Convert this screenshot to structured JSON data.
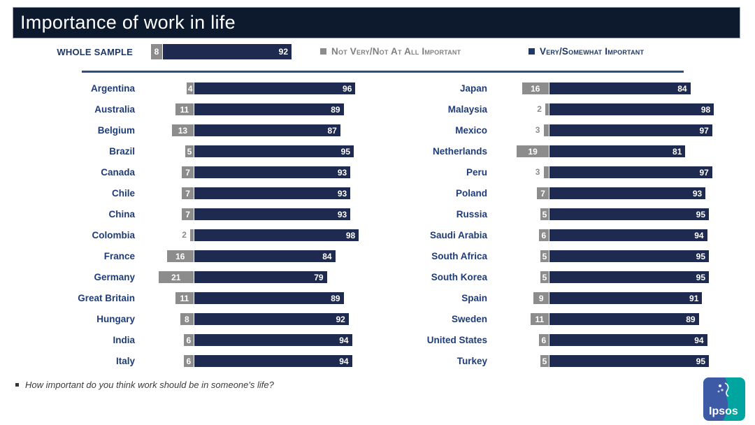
{
  "title": "Importance of work in life",
  "whole_sample": {
    "label": "WHOLE SAMPLE",
    "not_important": 8,
    "important": 92
  },
  "legend": {
    "not_important": "Not Very/Not At All Important",
    "important": "Very/Somewhat Important"
  },
  "footnote": "How important do you think work should be in someone's life?",
  "logo_text": "Ipsos",
  "colors": {
    "header_bg": "#0d1a2e",
    "navy_bar": "#1f2a50",
    "gray_bar": "#8c8c8c",
    "country_label": "#1f3c78",
    "legend_gray": "#7f7f7f",
    "legend_navy": "#1f3864",
    "divider": "#2d4e81",
    "ipsos_blue": "#3c5aa5",
    "ipsos_teal": "#00a5a0"
  },
  "chart_data": {
    "type": "bar",
    "orientation": "horizontal",
    "title": "Importance of work in life",
    "xlim": [
      0,
      100
    ],
    "grid": false,
    "legend_position": "top",
    "legend": [
      "Not Very/Not At All Important",
      "Very/Somewhat Important"
    ],
    "whole_sample": {
      "category": "Whole sample",
      "not_important": 8,
      "important": 92
    },
    "series_names": [
      "not_important",
      "important"
    ],
    "countries": [
      {
        "name": "Argentina",
        "not_important": 4,
        "important": 96,
        "column": "left"
      },
      {
        "name": "Australia",
        "not_important": 11,
        "important": 89,
        "column": "left"
      },
      {
        "name": "Belgium",
        "not_important": 13,
        "important": 87,
        "column": "left"
      },
      {
        "name": "Brazil",
        "not_important": 5,
        "important": 95,
        "column": "left"
      },
      {
        "name": "Canada",
        "not_important": 7,
        "important": 93,
        "column": "left"
      },
      {
        "name": "Chile",
        "not_important": 7,
        "important": 93,
        "column": "left"
      },
      {
        "name": "China",
        "not_important": 7,
        "important": 93,
        "column": "left"
      },
      {
        "name": "Colombia",
        "not_important": 2,
        "important": 98,
        "column": "left"
      },
      {
        "name": "France",
        "not_important": 16,
        "important": 84,
        "column": "left"
      },
      {
        "name": "Germany",
        "not_important": 21,
        "important": 79,
        "column": "left"
      },
      {
        "name": "Great Britain",
        "not_important": 11,
        "important": 89,
        "column": "left"
      },
      {
        "name": "Hungary",
        "not_important": 8,
        "important": 92,
        "column": "left"
      },
      {
        "name": "India",
        "not_important": 6,
        "important": 94,
        "column": "left"
      },
      {
        "name": "Italy",
        "not_important": 6,
        "important": 94,
        "column": "left"
      },
      {
        "name": "Japan",
        "not_important": 16,
        "important": 84,
        "column": "right"
      },
      {
        "name": "Malaysia",
        "not_important": 2,
        "important": 98,
        "column": "right"
      },
      {
        "name": "Mexico",
        "not_important": 3,
        "important": 97,
        "column": "right"
      },
      {
        "name": "Netherlands",
        "not_important": 19,
        "important": 81,
        "column": "right"
      },
      {
        "name": "Peru",
        "not_important": 3,
        "important": 97,
        "column": "right"
      },
      {
        "name": "Poland",
        "not_important": 7,
        "important": 93,
        "column": "right"
      },
      {
        "name": "Russia",
        "not_important": 5,
        "important": 95,
        "column": "right"
      },
      {
        "name": "Saudi Arabia",
        "not_important": 6,
        "important": 94,
        "column": "right"
      },
      {
        "name": "South Africa",
        "not_important": 5,
        "important": 95,
        "column": "right"
      },
      {
        "name": "South Korea",
        "not_important": 5,
        "important": 95,
        "column": "right"
      },
      {
        "name": "Spain",
        "not_important": 9,
        "important": 91,
        "column": "right"
      },
      {
        "name": "Sweden",
        "not_important": 11,
        "important": 89,
        "column": "right"
      },
      {
        "name": "United States",
        "not_important": 6,
        "important": 94,
        "column": "right"
      },
      {
        "name": "Turkey",
        "not_important": 5,
        "important": 95,
        "column": "right"
      }
    ]
  }
}
